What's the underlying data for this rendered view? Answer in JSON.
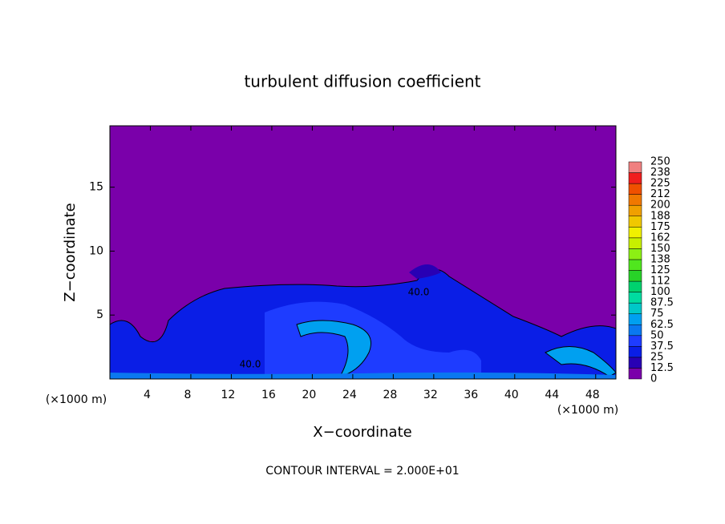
{
  "chart_data": {
    "type": "contour",
    "title": "turbulent diffusion coefficient",
    "xlabel": "X−coordinate",
    "ylabel": "Z−coordinate",
    "x_unit": "(×1000 m)",
    "footer": "CONTOUR INTERVAL = 2.000E+01",
    "xlim": [
      0,
      50
    ],
    "ylim": [
      0,
      19.8
    ],
    "xticks": [
      4,
      8,
      12,
      16,
      20,
      24,
      28,
      32,
      36,
      40,
      44,
      48
    ],
    "yticks": [
      5,
      10,
      15
    ],
    "contour_labels": [
      "40.0",
      "40.0"
    ],
    "background_color": "#7a00aa",
    "colorbar": {
      "ticks": [
        0,
        12.5,
        25,
        37.5,
        50,
        62.5,
        75,
        87.5,
        100,
        112,
        125,
        138,
        150,
        162,
        175,
        188,
        200,
        212,
        225,
        238,
        250
      ],
      "colors": [
        "#7a00aa",
        "#2800b4",
        "#0a1ee6",
        "#1e3cff",
        "#0a78f0",
        "#00a0f0",
        "#00c8c8",
        "#00dca0",
        "#00d26e",
        "#28d228",
        "#50e61e",
        "#8cf014",
        "#c8f000",
        "#f0f000",
        "#f0c800",
        "#f0a000",
        "#f07800",
        "#f05000",
        "#f01e1e",
        "#f08080"
      ]
    }
  }
}
